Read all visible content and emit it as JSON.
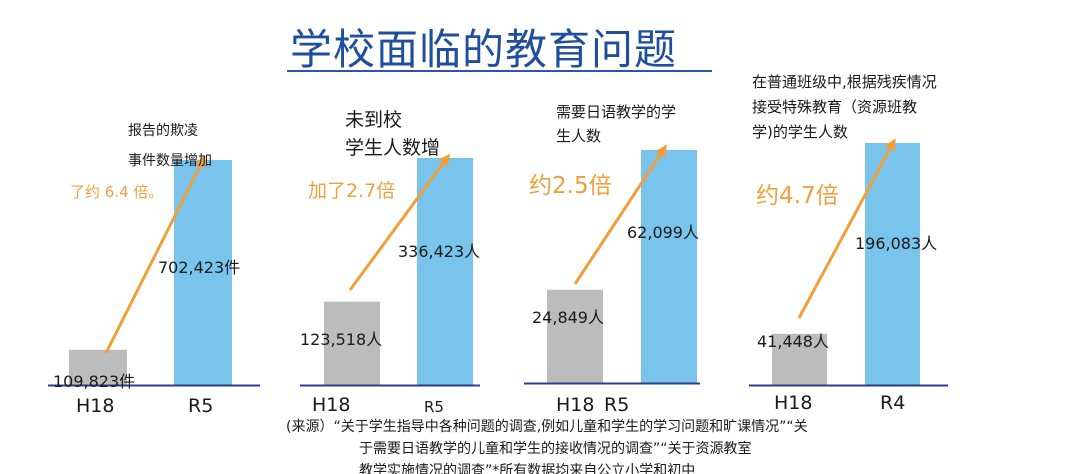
{
  "title": "学校面临的教育问题",
  "chart_data": [
    {
      "type": "bar",
      "caption_lines": [
        "报告的欺凌",
        "事件数量增加"
      ],
      "categories": [
        "H18",
        "R5"
      ],
      "values": [
        109823,
        702423
      ],
      "value_labels": [
        "109,823件",
        "702,423件"
      ],
      "growth_label": "了约 6.4 倍。",
      "colors": [
        "#bcbcbc",
        "#78c4ec"
      ]
    },
    {
      "type": "bar",
      "caption_lines": [
        "未到校",
        "学生人数增"
      ],
      "categories": [
        "H18",
        "R5"
      ],
      "values": [
        123518,
        336423
      ],
      "value_labels": [
        "123,518人",
        "336,423人"
      ],
      "growth_label": "加了2.7倍",
      "colors": [
        "#bcbcbc",
        "#78c4ec"
      ]
    },
    {
      "type": "bar",
      "caption_lines": [
        "需要日语教学的学",
        "生人数"
      ],
      "categories": [
        "H18",
        "R5"
      ],
      "values": [
        24849,
        62099
      ],
      "value_labels": [
        "24,849人",
        "62,099人"
      ],
      "growth_label": "约2.5倍",
      "colors": [
        "#bcbcbc",
        "#78c4ec"
      ]
    },
    {
      "type": "bar",
      "caption_lines": [
        "在普通班级中,根据残疾情况",
        "接受特殊教育（资源班教",
        "学)的学生人数"
      ],
      "categories": [
        "H18",
        "R4"
      ],
      "values": [
        41448,
        196083
      ],
      "value_labels": [
        "41,448人",
        "196,083人"
      ],
      "growth_label": "约4.7倍",
      "colors": [
        "#bcbcbc",
        "#78c4ec"
      ]
    }
  ],
  "source_lines": [
    "(来源）“关于学生指导中各种问题的调查,例如儿童和学生的学习问题和旷课情况”“关",
    "于需要日语教学的儿童和学生的接收情况的调查”“关于资源教室",
    "教学实施情况的调查”*所有数据均来自公立小学和初中"
  ],
  "colors": {
    "title": "#1e4e9c",
    "arrow": "#f0a03a",
    "baseline": "#2a3e8c"
  }
}
